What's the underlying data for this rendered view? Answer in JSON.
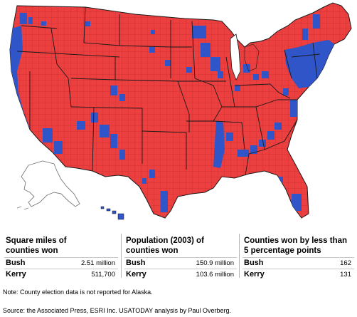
{
  "colors": {
    "bush": "#ec3f3f",
    "kerry": "#2f55c8",
    "border": "#202020",
    "county_line": "#b01e1e",
    "land_outline": "#808080"
  },
  "map": {
    "regions": [
      {
        "name": "contiguous-us",
        "color": "red"
      },
      {
        "name": "alaska",
        "color": "none"
      },
      {
        "name": "hawaii",
        "color": "blue"
      }
    ]
  },
  "stats": [
    {
      "title_line1": "Square miles of",
      "title_line2": "counties won",
      "rows": [
        {
          "candidate": "Bush",
          "value": "2.51 million"
        },
        {
          "candidate": "Kerry",
          "value": "511,700"
        }
      ]
    },
    {
      "title_line1": "Population (2003) of",
      "title_line2": "counties won",
      "rows": [
        {
          "candidate": "Bush",
          "value": "150.9 million"
        },
        {
          "candidate": "Kerry",
          "value": "103.6 million"
        }
      ]
    },
    {
      "title_line1": "Counties won by less than",
      "title_line2": "5 percentage points",
      "rows": [
        {
          "candidate": "Bush",
          "value": "162"
        },
        {
          "candidate": "Kerry",
          "value": "131"
        }
      ]
    }
  ],
  "note": "Note: County election data is not reported for Alaska.",
  "source": "Source: the Associated Press, ESRI Inc. USATODAY analysis by Paul Overberg."
}
